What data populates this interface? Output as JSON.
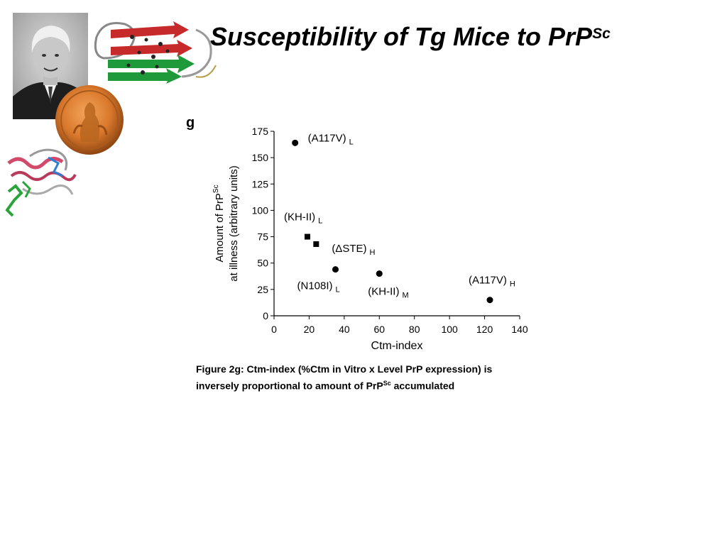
{
  "slide": {
    "title_main": "Susceptibility of Tg Mice to PrP",
    "title_sup": "Sc"
  },
  "caption": {
    "line1": "Figure 2g: Ctm-index (%Ctm in Vitro x Level PrP expression) is",
    "line2_pre": "inversely proportional to amount of PrP",
    "line2_sup": "Sc",
    "line2_post": " accumulated"
  },
  "chart_data": {
    "type": "scatter",
    "panel_label": "g",
    "xlabel": "Ctm-index",
    "ylabel_line1": "Amount of PrP",
    "ylabel_line1_sup": "Sc",
    "ylabel_line2": "at illness (arbitrary units)",
    "xlim": [
      0,
      140
    ],
    "ylim": [
      0,
      175
    ],
    "xticks": [
      0,
      20,
      40,
      60,
      80,
      100,
      120,
      140
    ],
    "yticks": [
      0,
      25,
      50,
      75,
      100,
      125,
      150,
      175
    ],
    "points": [
      {
        "x": 12,
        "y": 164,
        "marker": "circle",
        "label": "(A117V)",
        "sub": "L"
      },
      {
        "x": 19,
        "y": 75,
        "marker": "square",
        "label": "(KH-II)",
        "sub": "L"
      },
      {
        "x": 24,
        "y": 68,
        "marker": "square",
        "label": "(ΔSTE)",
        "sub": "H"
      },
      {
        "x": 35,
        "y": 44,
        "marker": "circle",
        "label": "(N108I)",
        "sub": "L"
      },
      {
        "x": 60,
        "y": 40,
        "marker": "circle",
        "label": "(KH-II)",
        "sub": "M"
      },
      {
        "x": 123,
        "y": 15,
        "marker": "circle",
        "label": "(A117V)",
        "sub": "H"
      }
    ]
  }
}
